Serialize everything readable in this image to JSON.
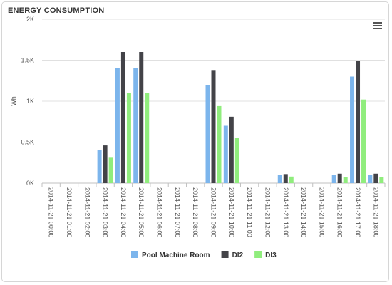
{
  "panel": {
    "title": "ENERGY CONSUMPTION",
    "menu_icon": "hamburger-menu-icon"
  },
  "chart_data": {
    "type": "bar",
    "title": "",
    "xlabel": "",
    "ylabel": "Wh",
    "ylim": [
      0,
      2000
    ],
    "yticks": [
      0,
      500,
      1000,
      1500,
      2000
    ],
    "ytick_labels": [
      "0K",
      "0.5K",
      "1K",
      "1.5K",
      "2K"
    ],
    "grid": true,
    "legend_position": "bottom-center",
    "categories": [
      "2014-11-21 00:00",
      "2014-11-21 01:00",
      "2014-11-21 02:00",
      "2014-11-21 03:00",
      "2014-11-21 04:00",
      "2014-11-21 05:00",
      "2014-11-21 06:00",
      "2014-11-21 07:00",
      "2014-11-21 08:00",
      "2014-11-21 09:00",
      "2014-11-21 10:00",
      "2014-11-21 11:00",
      "2014-11-21 12:00",
      "2014-11-21 13:00",
      "2014-11-21 14:00",
      "2014-11-21 15:00",
      "2014-11-21 16:00",
      "2014-11-21 17:00",
      "2014-11-21 18:00"
    ],
    "series": [
      {
        "name": "Pool Machine Room",
        "color": "#7cb5ec",
        "values": [
          0,
          0,
          0,
          400,
          1400,
          1400,
          0,
          0,
          0,
          1200,
          700,
          0,
          0,
          100,
          0,
          0,
          100,
          1300,
          100
        ]
      },
      {
        "name": "DI2",
        "color": "#434348",
        "values": [
          0,
          0,
          0,
          460,
          1600,
          1600,
          0,
          0,
          0,
          1380,
          810,
          0,
          0,
          110,
          0,
          0,
          115,
          1490,
          115
        ]
      },
      {
        "name": "DI3",
        "color": "#90ed7d",
        "values": [
          0,
          0,
          0,
          310,
          1100,
          1100,
          0,
          0,
          0,
          940,
          550,
          0,
          0,
          80,
          0,
          0,
          75,
          1020,
          75
        ]
      }
    ]
  }
}
